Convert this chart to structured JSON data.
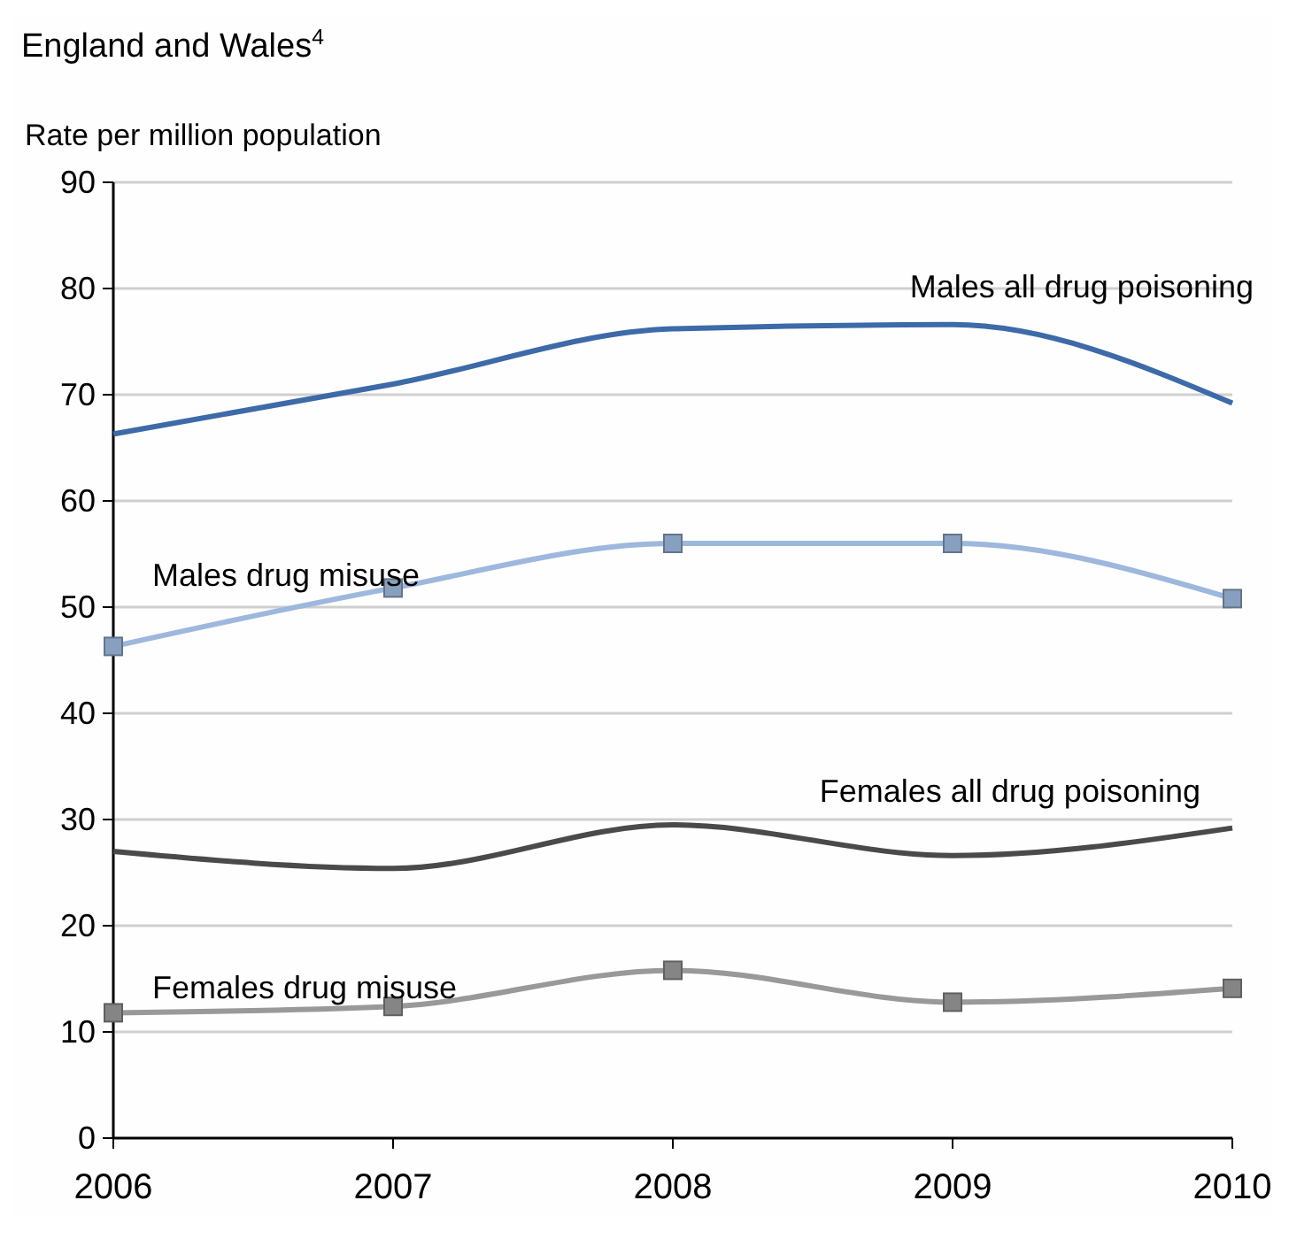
{
  "chart_data": {
    "type": "line",
    "title": "England and Wales$^{4}$",
    "ylabel": "Rate per million population",
    "x": [
      2006,
      2007,
      2008,
      2009,
      2010
    ],
    "xlim": [
      2006,
      2010
    ],
    "xticks": [
      2006,
      2007,
      2008,
      2009,
      2010
    ],
    "ylim": [
      0,
      90
    ],
    "yticks": [
      0,
      10,
      20,
      30,
      40,
      50,
      60,
      70,
      80,
      90
    ],
    "grid": "y",
    "series": [
      {
        "name": "Males all drug poisoning",
        "color": "#3d6aa8",
        "marker": "none",
        "values": [
          66.3,
          71,
          76.2,
          76.6,
          69.2
        ]
      },
      {
        "name": "Males drug misuse",
        "color": "#9db8dc",
        "marker": "square",
        "values": [
          46.3,
          51.8,
          56,
          56,
          50.8
        ]
      },
      {
        "name": "Females all drug poisoning",
        "color": "#4a4a4a",
        "marker": "none",
        "values": [
          27,
          25.4,
          29.5,
          26.6,
          29.2
        ]
      },
      {
        "name": "Females drug misuse",
        "color": "#999999",
        "marker": "square",
        "values": [
          11.8,
          12.4,
          15.8,
          12.8,
          14.1
        ]
      }
    ]
  }
}
